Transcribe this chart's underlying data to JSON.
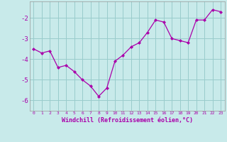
{
  "xlabel": "Windchill (Refroidissement éolien,°C)",
  "x": [
    0,
    1,
    2,
    3,
    4,
    5,
    6,
    7,
    8,
    9,
    10,
    11,
    12,
    13,
    14,
    15,
    16,
    17,
    18,
    19,
    20,
    21,
    22,
    23
  ],
  "y": [
    -3.5,
    -3.7,
    -3.6,
    -4.4,
    -4.3,
    -4.6,
    -5.0,
    -5.3,
    -5.8,
    -5.4,
    -4.1,
    -3.8,
    -3.4,
    -3.2,
    -2.7,
    -2.1,
    -2.2,
    -3.0,
    -3.1,
    -3.2,
    -2.1,
    -2.1,
    -1.6,
    -1.7
  ],
  "line_color": "#aa00aa",
  "marker": "D",
  "marker_size": 2.0,
  "linewidth": 0.9,
  "bg_color": "#c8eaea",
  "grid_color": "#99cccc",
  "xlim": [
    -0.5,
    23.5
  ],
  "ylim": [
    -6.5,
    -1.2
  ],
  "yticks": [
    -6,
    -5,
    -4,
    -3,
    -2
  ],
  "xticks": [
    0,
    1,
    2,
    3,
    4,
    5,
    6,
    7,
    8,
    9,
    10,
    11,
    12,
    13,
    14,
    15,
    16,
    17,
    18,
    19,
    20,
    21,
    22,
    23
  ],
  "ytick_fontsize": 6.5,
  "xtick_fontsize": 4.5,
  "xlabel_fontsize": 6.0
}
